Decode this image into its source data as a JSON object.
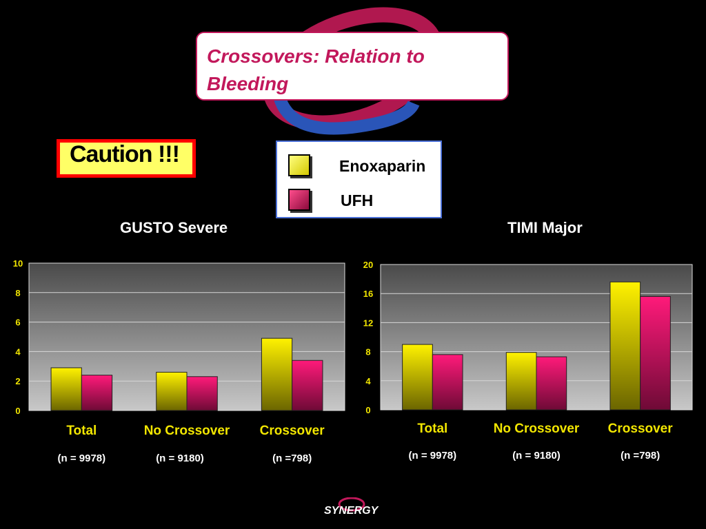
{
  "slide": {
    "title": "Crossovers: Relation to Bleeding",
    "caution": "Caution !!!",
    "logo_text": "SYNERGY"
  },
  "legend": {
    "items": [
      {
        "label": "Enoxaparin",
        "color": "#f2e600"
      },
      {
        "label": "UFH",
        "color": "#d81b60"
      }
    ]
  },
  "colors": {
    "enoxaparin": "#f2e600",
    "ufh": "#e0116a",
    "category_label": "#f2e600",
    "title": "#c2185b"
  },
  "chart_data": [
    {
      "type": "bar",
      "title": "GUSTO Severe",
      "categories": [
        "Total",
        "No Crossover",
        "Crossover"
      ],
      "sublabels": [
        "(n = 9978)",
        "(n = 9180)",
        "(n =798)"
      ],
      "series": [
        {
          "name": "Enoxaparin",
          "values": [
            2.9,
            2.6,
            4.9
          ]
        },
        {
          "name": "UFH",
          "values": [
            2.4,
            2.3,
            3.4
          ]
        }
      ],
      "ylim": [
        0,
        10
      ],
      "yticks": [
        0,
        2,
        4,
        6,
        8,
        10
      ],
      "grid": true
    },
    {
      "type": "bar",
      "title": "TIMI Major",
      "categories": [
        "Total",
        "No Crossover",
        "Crossover"
      ],
      "sublabels": [
        "(n = 9978)",
        "(n = 9180)",
        "(n =798)"
      ],
      "series": [
        {
          "name": "Enoxaparin",
          "values": [
            9.0,
            7.9,
            17.6
          ]
        },
        {
          "name": "UFH",
          "values": [
            7.6,
            7.3,
            15.6
          ]
        }
      ],
      "ylim": [
        0,
        20
      ],
      "yticks": [
        0,
        4,
        8,
        12,
        16,
        20
      ],
      "grid": true
    }
  ]
}
